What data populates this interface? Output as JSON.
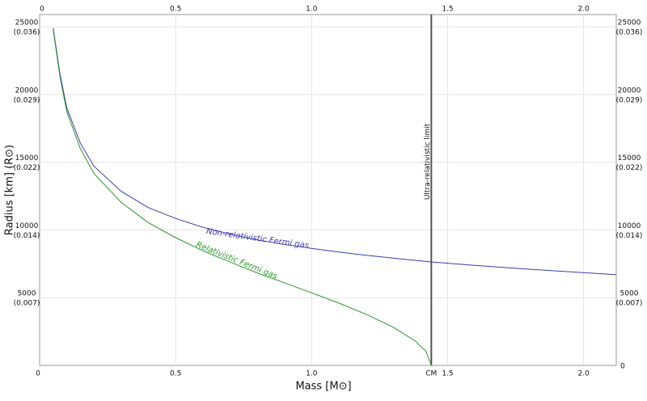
{
  "chart_data": {
    "type": "line",
    "xlabel": "Mass [M⊙]",
    "ylabel": "Radius [km] (R⊙)",
    "xlim": [
      0,
      2.12
    ],
    "ylim": [
      0,
      25900
    ],
    "xticks": [
      0,
      0.5,
      {
        "value": 1,
        "label": "1.0"
      },
      1.5,
      {
        "value": 2,
        "label": "2.0"
      }
    ],
    "yticks": [
      0,
      5000,
      10000,
      15000,
      20000,
      25000
    ],
    "ytick_sublabels": [
      null,
      "(0.007)",
      "(0.014)",
      "(0.022)",
      "(0.029)",
      "(0.036)"
    ],
    "grid": true,
    "limit": {
      "x": 1.44,
      "label": "CM",
      "annotation": "Ultra-relativistic limit",
      "color": "#555555"
    },
    "series": [
      {
        "name": "Non-relativistic Fermi gas",
        "color": "#3c3cac",
        "x": [
          0.05,
          0.075,
          0.1,
          0.15,
          0.2,
          0.3,
          0.4,
          0.5,
          0.6,
          0.7,
          0.8,
          0.9,
          1.0,
          1.1,
          1.2,
          1.3,
          1.44,
          1.6,
          1.8,
          2.0,
          2.12
        ],
        "values": [
          24900,
          21500,
          19000,
          16400,
          14700,
          12850,
          11650,
          10850,
          10200,
          9700,
          9270,
          8930,
          8640,
          8370,
          8130,
          7920,
          7640,
          7380,
          7100,
          6850,
          6700
        ]
      },
      {
        "name": "Relativistic Fermi gas",
        "color": "#2a962a",
        "x": [
          0.05,
          0.075,
          0.1,
          0.15,
          0.2,
          0.3,
          0.4,
          0.5,
          0.6,
          0.7,
          0.8,
          0.9,
          1.0,
          1.1,
          1.2,
          1.3,
          1.38,
          1.42,
          1.44
        ],
        "values": [
          24760,
          21290,
          18730,
          15990,
          14160,
          12030,
          10540,
          9430,
          8470,
          7630,
          6830,
          6100,
          5360,
          4600,
          3780,
          2820,
          1820,
          1050,
          0
        ]
      }
    ]
  }
}
